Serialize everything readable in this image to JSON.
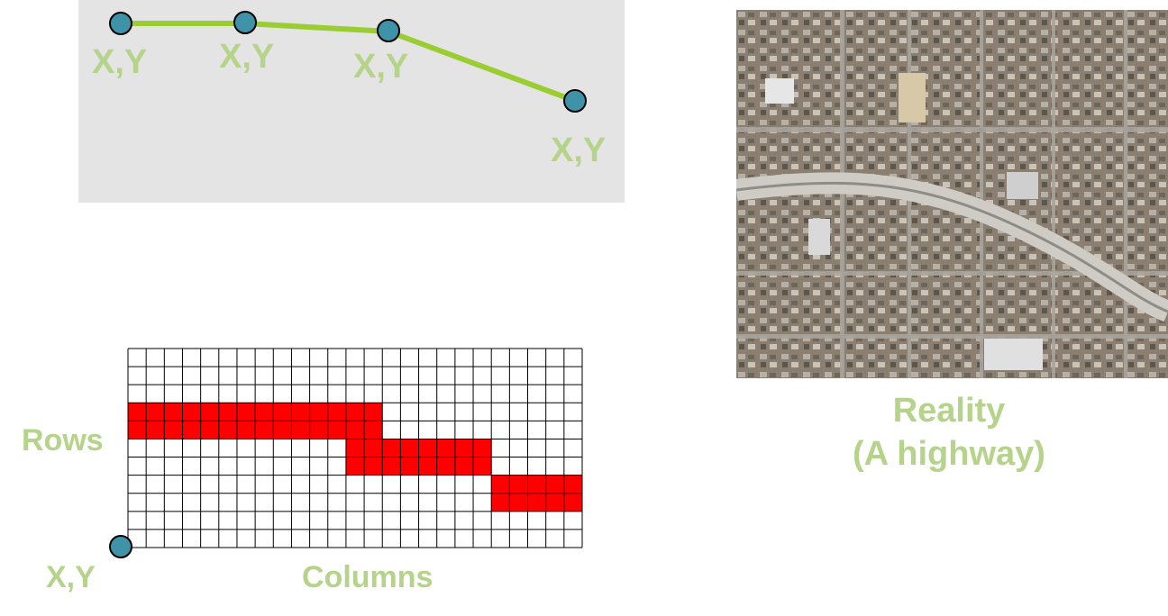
{
  "colors": {
    "accent_text": "#b5d38a",
    "vector_line": "#9acd32",
    "vertex_fill": "#3f93a8",
    "raster_fill": "#ff0000",
    "panel_bg": "#e4e4e4"
  },
  "vector": {
    "vertex_labels": [
      "X,Y",
      "X,Y",
      "X,Y",
      "X,Y"
    ]
  },
  "raster": {
    "rows_label": "Rows",
    "columns_label": "Columns",
    "origin_label": "X,Y",
    "grid": {
      "columns": 25,
      "rows": 11
    },
    "filled_runs": [
      {
        "rows": [
          3,
          4
        ],
        "col_start": 0,
        "col_end": 13
      },
      {
        "rows": [
          5,
          6
        ],
        "col_start": 12,
        "col_end": 19
      },
      {
        "rows": [
          7,
          8
        ],
        "col_start": 20,
        "col_end": 24
      }
    ]
  },
  "reality": {
    "caption_line1": "Reality",
    "caption_line2": "(A highway)",
    "image_icon": "aerial-photo-highway"
  }
}
